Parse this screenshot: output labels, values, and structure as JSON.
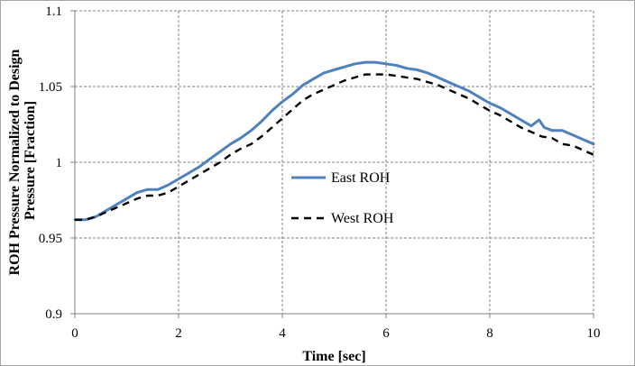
{
  "chart_data": {
    "type": "line",
    "xlabel": "Time [sec]",
    "ylabel_lines": [
      "ROH Pressure Normalized to Design",
      "Pressure  [Fraction]"
    ],
    "xlim": [
      0,
      10
    ],
    "ylim": [
      0.9,
      1.1
    ],
    "xticks": [
      0,
      2,
      4,
      6,
      8,
      10
    ],
    "yticks": [
      0.9,
      0.95,
      1,
      1.05,
      1.1
    ],
    "xtick_labels": [
      "0",
      "2",
      "4",
      "6",
      "8",
      "10"
    ],
    "ytick_labels": [
      "0.9",
      "0.95",
      "1",
      "1.05",
      "1.1"
    ],
    "grid": true,
    "legend": "center",
    "series": [
      {
        "name": "East ROH",
        "color": "#4f81bd",
        "style": "solid",
        "x": [
          0,
          0.2,
          0.4,
          0.6,
          0.8,
          1.0,
          1.2,
          1.4,
          1.6,
          1.8,
          2.0,
          2.2,
          2.4,
          2.6,
          2.8,
          3.0,
          3.2,
          3.4,
          3.6,
          3.8,
          4.0,
          4.2,
          4.4,
          4.6,
          4.8,
          5.0,
          5.2,
          5.4,
          5.6,
          5.8,
          6.0,
          6.2,
          6.4,
          6.6,
          6.8,
          7.0,
          7.2,
          7.4,
          7.6,
          7.8,
          8.0,
          8.2,
          8.4,
          8.6,
          8.8,
          8.95,
          9.05,
          9.2,
          9.4,
          9.6,
          9.8,
          10.0
        ],
        "y": [
          0.962,
          0.962,
          0.964,
          0.968,
          0.972,
          0.976,
          0.98,
          0.982,
          0.982,
          0.985,
          0.989,
          0.993,
          0.997,
          1.002,
          1.007,
          1.012,
          1.016,
          1.021,
          1.027,
          1.034,
          1.04,
          1.045,
          1.051,
          1.055,
          1.059,
          1.061,
          1.063,
          1.065,
          1.066,
          1.066,
          1.065,
          1.064,
          1.062,
          1.061,
          1.059,
          1.056,
          1.053,
          1.05,
          1.047,
          1.043,
          1.039,
          1.036,
          1.032,
          1.028,
          1.024,
          1.028,
          1.023,
          1.021,
          1.021,
          1.018,
          1.015,
          1.012
        ]
      },
      {
        "name": "West ROH",
        "color": "#000000",
        "style": "dashed",
        "x": [
          0,
          0.2,
          0.4,
          0.6,
          0.8,
          1.0,
          1.2,
          1.4,
          1.6,
          1.8,
          2.0,
          2.2,
          2.4,
          2.6,
          2.8,
          3.0,
          3.2,
          3.4,
          3.6,
          3.8,
          4.0,
          4.2,
          4.4,
          4.6,
          4.8,
          5.0,
          5.2,
          5.4,
          5.6,
          5.8,
          6.0,
          6.2,
          6.4,
          6.6,
          6.8,
          7.0,
          7.2,
          7.4,
          7.6,
          7.8,
          8.0,
          8.2,
          8.4,
          8.6,
          8.8,
          9.0,
          9.2,
          9.4,
          9.6,
          9.8,
          10.0
        ],
        "y": [
          0.962,
          0.962,
          0.964,
          0.967,
          0.97,
          0.973,
          0.976,
          0.978,
          0.978,
          0.98,
          0.984,
          0.988,
          0.992,
          0.996,
          1.0,
          1.005,
          1.009,
          1.012,
          1.017,
          1.023,
          1.029,
          1.035,
          1.041,
          1.045,
          1.048,
          1.051,
          1.054,
          1.056,
          1.058,
          1.058,
          1.058,
          1.057,
          1.056,
          1.055,
          1.053,
          1.051,
          1.048,
          1.045,
          1.042,
          1.038,
          1.034,
          1.031,
          1.027,
          1.023,
          1.02,
          1.017,
          1.016,
          1.012,
          1.011,
          1.008,
          1.005
        ]
      }
    ]
  }
}
